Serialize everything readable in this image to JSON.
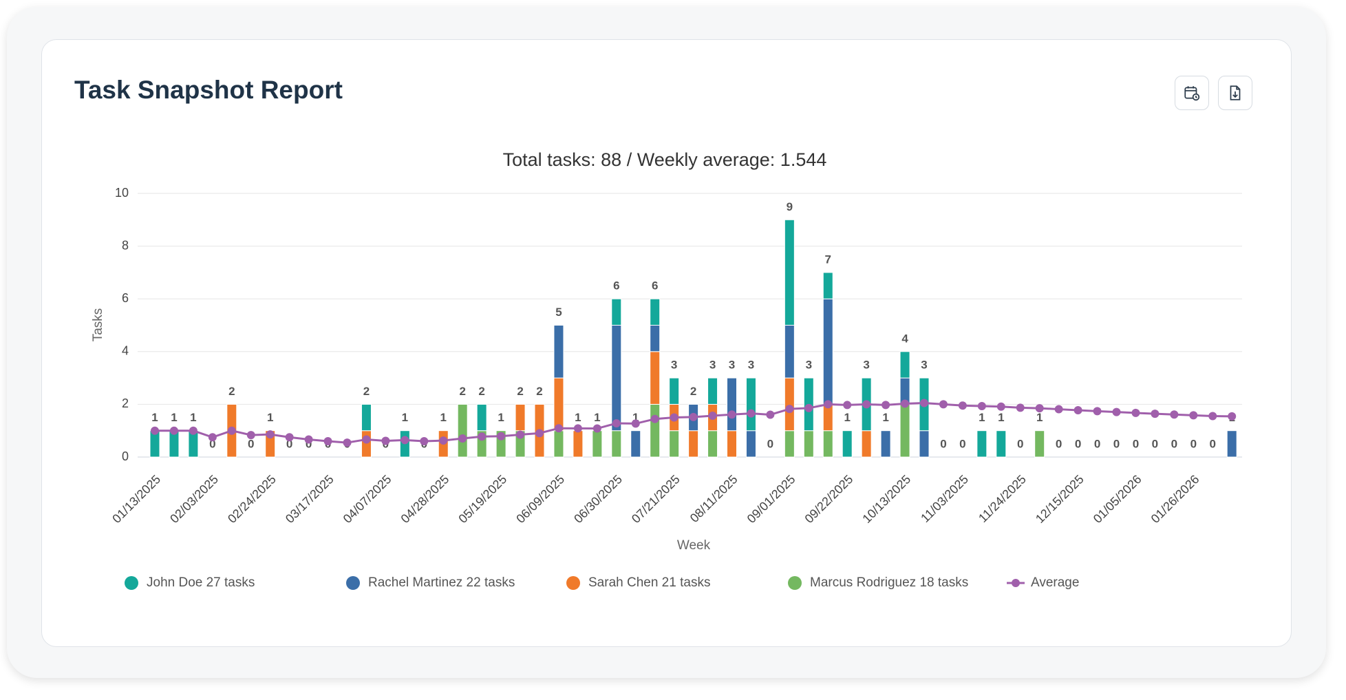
{
  "chart_data": {
    "type": "bar",
    "stacked": true,
    "header_title": "Task Snapshot Report",
    "title": "Total tasks: 88 / Weekly average: 1.544",
    "x_label": "Week",
    "y_label": "Tasks",
    "ylim": [
      0,
      10
    ],
    "yticks": [
      0,
      2,
      4,
      6,
      8,
      10
    ],
    "grid": true,
    "categories": [
      "01/13/2025",
      null,
      null,
      "02/03/2025",
      null,
      null,
      "02/24/2025",
      null,
      null,
      "03/17/2025",
      null,
      null,
      "04/07/2025",
      null,
      null,
      "04/28/2025",
      null,
      null,
      "05/19/2025",
      null,
      null,
      "06/09/2025",
      null,
      null,
      "06/30/2025",
      null,
      null,
      "07/21/2025",
      null,
      null,
      "08/11/2025",
      null,
      null,
      "09/01/2025",
      null,
      null,
      "09/22/2025",
      null,
      null,
      "10/13/2025",
      null,
      null,
      "11/03/2025",
      null,
      null,
      "11/24/2025",
      null,
      null,
      "12/15/2025",
      null,
      null,
      "01/05/2026",
      null,
      null,
      "01/26/2026",
      null,
      null
    ],
    "totals": [
      1,
      1,
      1,
      0,
      2,
      0,
      1,
      0,
      0,
      0,
      0,
      2,
      0,
      1,
      0,
      1,
      2,
      2,
      1,
      2,
      2,
      5,
      1,
      1,
      6,
      1,
      6,
      3,
      2,
      3,
      3,
      3,
      0,
      9,
      3,
      7,
      1,
      3,
      1,
      4,
      3,
      0,
      0,
      1,
      1,
      0,
      1,
      0,
      0,
      0,
      0,
      0,
      0,
      0,
      0,
      0,
      1
    ],
    "series": [
      {
        "name": "John Doe 27 tasks",
        "color": "#14a89a",
        "values": [
          1,
          1,
          1,
          0,
          0,
          0,
          0,
          0,
          0,
          0,
          0,
          1,
          0,
          1,
          0,
          0,
          0,
          1,
          0,
          0,
          0,
          0,
          0,
          0,
          1,
          0,
          1,
          1,
          0,
          1,
          0,
          2,
          0,
          4,
          2,
          1,
          1,
          2,
          0,
          1,
          2,
          0,
          0,
          1,
          1,
          0,
          0,
          0,
          0,
          0,
          0,
          0,
          0,
          0,
          0,
          0,
          0
        ]
      },
      {
        "name": "Rachel Martinez 22 tasks",
        "color": "#3b6ea8",
        "values": [
          0,
          0,
          0,
          0,
          0,
          0,
          0,
          0,
          0,
          0,
          0,
          0,
          0,
          0,
          0,
          0,
          0,
          0,
          0,
          0,
          0,
          2,
          0,
          0,
          4,
          1,
          1,
          0,
          1,
          0,
          2,
          1,
          0,
          2,
          0,
          4,
          0,
          0,
          1,
          1,
          1,
          0,
          0,
          0,
          0,
          0,
          0,
          0,
          0,
          0,
          0,
          0,
          0,
          0,
          0,
          0,
          1
        ]
      },
      {
        "name": "Sarah Chen 21 tasks",
        "color": "#f07a2a",
        "values": [
          0,
          0,
          0,
          0,
          2,
          0,
          1,
          0,
          0,
          0,
          0,
          1,
          0,
          0,
          0,
          1,
          0,
          0,
          0,
          1,
          2,
          2,
          1,
          0,
          0,
          0,
          2,
          1,
          1,
          1,
          1,
          0,
          0,
          2,
          0,
          1,
          0,
          1,
          0,
          0,
          0,
          0,
          0,
          0,
          0,
          0,
          0,
          0,
          0,
          0,
          0,
          0,
          0,
          0,
          0,
          0,
          0
        ]
      },
      {
        "name": "Marcus Rodriguez 18 tasks",
        "color": "#74b860",
        "values": [
          0,
          0,
          0,
          0,
          0,
          0,
          0,
          0,
          0,
          0,
          0,
          0,
          0,
          0,
          0,
          0,
          2,
          1,
          1,
          1,
          0,
          1,
          0,
          1,
          1,
          0,
          2,
          1,
          0,
          1,
          0,
          0,
          0,
          1,
          1,
          1,
          0,
          0,
          0,
          2,
          0,
          0,
          0,
          0,
          0,
          0,
          1,
          0,
          0,
          0,
          0,
          0,
          0,
          0,
          0,
          0,
          0
        ]
      },
      {
        "name": "Average",
        "type": "line",
        "color": "#a05fab",
        "values": [
          1,
          1,
          1,
          0.75,
          1,
          0.833,
          0.857,
          0.75,
          0.667,
          0.6,
          0.545,
          0.667,
          0.615,
          0.643,
          0.6,
          0.625,
          0.706,
          0.778,
          0.789,
          0.85,
          0.905,
          1.091,
          1.087,
          1.083,
          1.28,
          1.269,
          1.444,
          1.5,
          1.517,
          1.567,
          1.613,
          1.656,
          1.606,
          1.824,
          1.857,
          2,
          1.973,
          2,
          1.974,
          2.025,
          2.049,
          2,
          1.953,
          1.932,
          1.911,
          1.87,
          1.851,
          1.813,
          1.776,
          1.74,
          1.706,
          1.673,
          1.642,
          1.611,
          1.582,
          1.554,
          1.544
        ]
      }
    ]
  }
}
